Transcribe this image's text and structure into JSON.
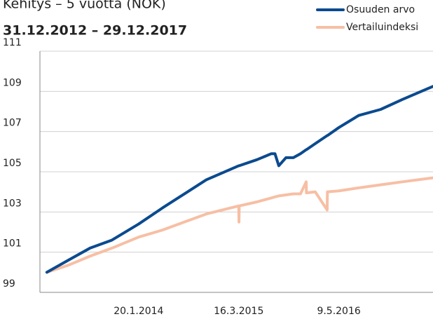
{
  "chart_data": {
    "type": "line",
    "title": "Kehitys – 5 vuotta (NOK)",
    "subtitle": "31.12.2012 – 29.12.2017",
    "x": [
      "31.12.2012",
      "31.3.2013",
      "30.6.2013",
      "30.9.2013",
      "20.1.2014",
      "30.4.2014",
      "31.7.2014",
      "31.10.2014",
      "16.3.2015",
      "17.3.2015",
      "18.3.2015",
      "31.5.2015",
      "31.7.2015",
      "15.8.2015",
      "31.8.2015",
      "30.9.2015",
      "31.10.2015",
      "30.11.2015",
      "24.12.2015",
      "25.12.2015",
      "31.1.2016",
      "21.3.2016",
      "22.3.2016",
      "9.5.2016",
      "31.7.2016",
      "31.10.2016",
      "31.1.2017",
      "8.6.2017"
    ],
    "series": [
      {
        "name": "Osuuden arvo",
        "color": "#0b4a8f",
        "values": [
          100,
          100.6,
          101.2,
          101.6,
          102.4,
          103.2,
          103.9,
          104.6,
          105.3,
          105.3,
          105.3,
          105.6,
          105.9,
          105.9,
          105.3,
          105.7,
          105.7,
          105.9,
          106.1,
          106.1,
          106.4,
          106.8,
          106.8,
          107.2,
          107.8,
          108.1,
          108.6,
          109.25
        ]
      },
      {
        "name": "Vertailuindeksi",
        "color": "#f7bfa4",
        "values": [
          100,
          100.35,
          100.8,
          101.2,
          101.75,
          102.1,
          102.5,
          102.9,
          103.3,
          102.5,
          103.3,
          103.5,
          103.7,
          103.75,
          103.8,
          103.85,
          103.9,
          103.9,
          104.5,
          103.95,
          104.0,
          103.1,
          104.0,
          104.05,
          104.2,
          104.35,
          104.5,
          104.7
        ]
      }
    ],
    "xlim": [
      "2.12.2012",
      "8.6.2017"
    ],
    "xticks": [
      "20.1.2014",
      "16.3.2015",
      "9.5.2016"
    ],
    "ylim": [
      99,
      111
    ],
    "yticks": [
      99,
      101,
      103,
      105,
      107,
      109,
      111
    ],
    "grid": true,
    "legend": "top-right"
  }
}
